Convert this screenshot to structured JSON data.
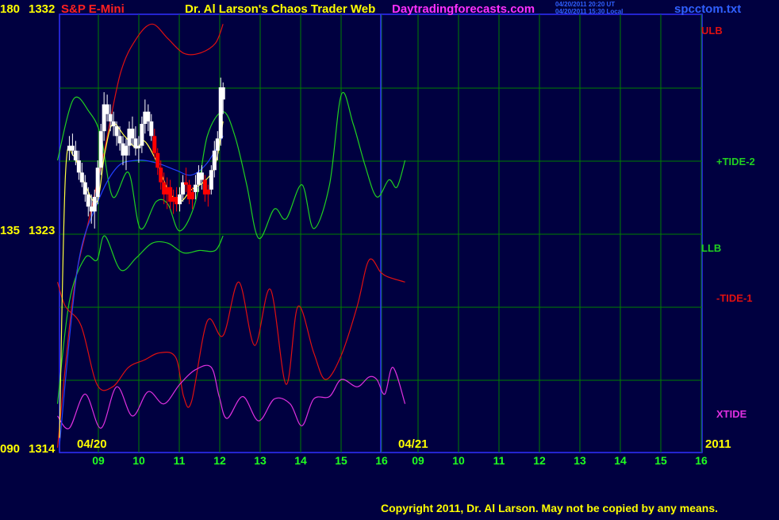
{
  "header": {
    "left_axis_top": "180",
    "right_axis_top": "1332",
    "symbol": "S&P E-Mini",
    "title": "Dr. Al Larson's Chaos Trader Web",
    "site": "Daytradingforecasts.com",
    "timestamp_ut": "04/20/2011 20:20 UT",
    "timestamp_local": "04/20/2011 15:30 Local",
    "filename": "spcctom.txt"
  },
  "footer": {
    "copyright": "Copyright 2011, Dr. Al Larson. May not be copied by any means."
  },
  "colors": {
    "background": "#000040",
    "grid": "#008000",
    "frame": "#3030ff",
    "price_up": "#ffffff",
    "price_down": "#ff0000",
    "price_wick": "#ffffc0",
    "ulb": "#e01010",
    "tide2": "#20d020",
    "llb": "#20d020",
    "tide1": "#e01010",
    "xtide": "#e030e0",
    "ma_blue": "#2040ff",
    "ma_yellow": "#ffff40",
    "axis_text": "#ffff00",
    "hour_text": "#20ff20",
    "site_text": "#ff30ff",
    "header_red": "#ff2020"
  },
  "chart_data": {
    "type": "line",
    "x_hours": [
      "09",
      "10",
      "11",
      "12",
      "13",
      "14",
      "15",
      "16",
      "09",
      "10",
      "11",
      "12",
      "13",
      "14",
      "15",
      "16"
    ],
    "date_labels": [
      "04/20",
      "04/21",
      "2011"
    ],
    "y_left_ticks": [
      "180",
      "135",
      "090"
    ],
    "y_right_ticks": [
      "1332",
      "1323",
      "1314"
    ],
    "ylim": [
      1314,
      1332
    ],
    "grid": true,
    "series_names": [
      "ULB",
      "+TIDE-2",
      "LLB",
      "-TIDE-1",
      "XTIDE"
    ],
    "bars": [
      {
        "x": 8.1,
        "o": 1326.4,
        "h": 1327.0,
        "l": 1326.0,
        "c": 1326.6
      },
      {
        "x": 8.18,
        "o": 1326.6,
        "h": 1327.1,
        "l": 1326.2,
        "c": 1326.4
      },
      {
        "x": 8.26,
        "o": 1326.4,
        "h": 1326.8,
        "l": 1325.8,
        "c": 1326.0
      },
      {
        "x": 8.34,
        "o": 1326.0,
        "h": 1326.4,
        "l": 1325.2,
        "c": 1325.5
      },
      {
        "x": 8.42,
        "o": 1325.5,
        "h": 1325.9,
        "l": 1324.9,
        "c": 1325.1
      },
      {
        "x": 8.5,
        "o": 1325.1,
        "h": 1325.4,
        "l": 1324.3,
        "c": 1324.6
      },
      {
        "x": 8.58,
        "o": 1324.6,
        "h": 1324.9,
        "l": 1323.7,
        "c": 1324.1
      },
      {
        "x": 8.66,
        "o": 1324.1,
        "h": 1324.6,
        "l": 1323.4,
        "c": 1323.9
      },
      {
        "x": 8.74,
        "o": 1323.9,
        "h": 1324.8,
        "l": 1323.2,
        "c": 1324.5
      },
      {
        "x": 8.82,
        "o": 1324.5,
        "h": 1326.0,
        "l": 1324.2,
        "c": 1325.7
      },
      {
        "x": 8.9,
        "o": 1325.7,
        "h": 1327.5,
        "l": 1325.4,
        "c": 1327.2
      },
      {
        "x": 8.98,
        "o": 1327.2,
        "h": 1328.8,
        "l": 1326.8,
        "c": 1328.3
      },
      {
        "x": 9.06,
        "o": 1328.3,
        "h": 1328.7,
        "l": 1327.6,
        "c": 1327.9
      },
      {
        "x": 9.14,
        "o": 1327.9,
        "h": 1328.3,
        "l": 1327.2,
        "c": 1327.6
      },
      {
        "x": 9.22,
        "o": 1327.6,
        "h": 1328.0,
        "l": 1327.0,
        "c": 1327.4
      },
      {
        "x": 9.3,
        "o": 1327.4,
        "h": 1327.6,
        "l": 1326.6,
        "c": 1327.0
      },
      {
        "x": 9.38,
        "o": 1327.0,
        "h": 1327.4,
        "l": 1326.4,
        "c": 1326.7
      },
      {
        "x": 9.46,
        "o": 1326.7,
        "h": 1327.0,
        "l": 1325.8,
        "c": 1326.2
      },
      {
        "x": 9.54,
        "o": 1326.2,
        "h": 1326.9,
        "l": 1325.6,
        "c": 1326.6
      },
      {
        "x": 9.62,
        "o": 1326.6,
        "h": 1327.6,
        "l": 1326.2,
        "c": 1327.3
      },
      {
        "x": 9.7,
        "o": 1327.3,
        "h": 1327.8,
        "l": 1326.6,
        "c": 1326.9
      },
      {
        "x": 9.78,
        "o": 1326.9,
        "h": 1327.4,
        "l": 1326.2,
        "c": 1326.5
      },
      {
        "x": 9.86,
        "o": 1326.5,
        "h": 1327.0,
        "l": 1325.9,
        "c": 1326.6
      },
      {
        "x": 9.94,
        "o": 1326.6,
        "h": 1327.8,
        "l": 1326.3,
        "c": 1327.5
      },
      {
        "x": 10.02,
        "o": 1327.5,
        "h": 1328.5,
        "l": 1327.1,
        "c": 1328.0
      },
      {
        "x": 10.1,
        "o": 1328.0,
        "h": 1328.3,
        "l": 1327.2,
        "c": 1327.6
      },
      {
        "x": 10.18,
        "o": 1327.6,
        "h": 1327.9,
        "l": 1326.8,
        "c": 1327.0
      },
      {
        "x": 10.26,
        "o": 1327.0,
        "h": 1327.3,
        "l": 1326.1,
        "c": 1326.3,
        "down": true
      },
      {
        "x": 10.34,
        "o": 1326.3,
        "h": 1326.5,
        "l": 1325.4,
        "c": 1325.7,
        "down": true
      },
      {
        "x": 10.42,
        "o": 1325.7,
        "h": 1326.0,
        "l": 1324.8,
        "c": 1325.1,
        "down": true
      },
      {
        "x": 10.5,
        "o": 1325.1,
        "h": 1325.5,
        "l": 1324.2,
        "c": 1324.6,
        "down": true
      },
      {
        "x": 10.58,
        "o": 1324.6,
        "h": 1325.3,
        "l": 1324.0,
        "c": 1324.9,
        "down": true
      },
      {
        "x": 10.66,
        "o": 1324.9,
        "h": 1325.2,
        "l": 1324.0,
        "c": 1324.3,
        "down": true
      },
      {
        "x": 10.74,
        "o": 1324.3,
        "h": 1324.8,
        "l": 1323.8,
        "c": 1324.5,
        "down": true
      },
      {
        "x": 10.82,
        "o": 1324.5,
        "h": 1324.9,
        "l": 1323.9,
        "c": 1324.2,
        "down": true
      },
      {
        "x": 10.9,
        "o": 1324.2,
        "h": 1324.9,
        "l": 1323.9,
        "c": 1324.6
      },
      {
        "x": 10.98,
        "o": 1324.6,
        "h": 1325.4,
        "l": 1324.3,
        "c": 1325.1
      },
      {
        "x": 11.06,
        "o": 1325.1,
        "h": 1325.7,
        "l": 1324.7,
        "c": 1325.0,
        "down": true
      },
      {
        "x": 11.14,
        "o": 1325.0,
        "h": 1325.2,
        "l": 1324.2,
        "c": 1324.4,
        "down": true
      },
      {
        "x": 11.22,
        "o": 1324.4,
        "h": 1324.9,
        "l": 1324.0,
        "c": 1324.7,
        "down": true
      },
      {
        "x": 11.3,
        "o": 1324.7,
        "h": 1325.4,
        "l": 1324.4,
        "c": 1325.0
      },
      {
        "x": 11.38,
        "o": 1325.0,
        "h": 1325.8,
        "l": 1324.7,
        "c": 1325.5
      },
      {
        "x": 11.46,
        "o": 1325.5,
        "h": 1325.8,
        "l": 1324.8,
        "c": 1325.2
      },
      {
        "x": 11.54,
        "o": 1325.2,
        "h": 1325.4,
        "l": 1324.3,
        "c": 1324.6,
        "down": true
      },
      {
        "x": 11.62,
        "o": 1324.6,
        "h": 1325.0,
        "l": 1324.1,
        "c": 1324.8,
        "down": true
      },
      {
        "x": 11.7,
        "o": 1324.8,
        "h": 1325.8,
        "l": 1324.6,
        "c": 1325.6
      },
      {
        "x": 11.78,
        "o": 1325.6,
        "h": 1326.8,
        "l": 1325.3,
        "c": 1326.4
      },
      {
        "x": 11.86,
        "o": 1326.4,
        "h": 1327.2,
        "l": 1326.0,
        "c": 1326.9
      },
      {
        "x": 11.94,
        "o": 1326.9,
        "h": 1329.4,
        "l": 1326.6,
        "c": 1329.0
      },
      {
        "x": 12.0,
        "o": 1329.0,
        "h": 1329.2,
        "l": 1327.9,
        "c": 1328.5
      }
    ],
    "curves": {
      "ulb": [
        [
          7.8,
          1314.2
        ],
        [
          8.2,
          1320.5
        ],
        [
          8.6,
          1323.6
        ],
        [
          9.0,
          1326.5
        ],
        [
          9.4,
          1329.6
        ],
        [
          9.8,
          1331.0
        ],
        [
          10.2,
          1331.6
        ],
        [
          10.6,
          1331.0
        ],
        [
          11.0,
          1330.4
        ],
        [
          11.4,
          1330.4
        ],
        [
          11.8,
          1330.8
        ],
        [
          12.0,
          1331.6
        ]
      ],
      "tide2": [
        [
          7.8,
          1326.0
        ],
        [
          8.2,
          1328.5
        ],
        [
          8.6,
          1328.0
        ],
        [
          8.9,
          1327.0
        ],
        [
          9.2,
          1324.5
        ],
        [
          9.6,
          1325.5
        ],
        [
          9.9,
          1323.2
        ],
        [
          10.3,
          1324.3
        ],
        [
          10.6,
          1324.2
        ],
        [
          10.9,
          1323.1
        ],
        [
          11.3,
          1324.3
        ],
        [
          11.6,
          1327.0
        ],
        [
          12.0,
          1328.0
        ],
        [
          12.3,
          1327.0
        ],
        [
          12.6,
          1325.0
        ],
        [
          12.9,
          1322.8
        ],
        [
          13.3,
          1324.0
        ],
        [
          13.6,
          1323.6
        ],
        [
          14.0,
          1325.0
        ],
        [
          14.3,
          1323.2
        ],
        [
          14.7,
          1325.0
        ],
        [
          15.0,
          1328.7
        ],
        [
          15.3,
          1327.5
        ],
        [
          15.6,
          1325.8
        ],
        [
          15.9,
          1324.5
        ],
        [
          16.2,
          1325.2
        ],
        [
          16.4,
          1324.9
        ],
        [
          16.6,
          1326.0
        ]
      ],
      "llb": [
        [
          7.8,
          1316.0
        ],
        [
          8.1,
          1320.2
        ],
        [
          8.5,
          1322.0
        ],
        [
          8.8,
          1321.9
        ],
        [
          9.0,
          1322.9
        ],
        [
          9.4,
          1321.5
        ],
        [
          9.8,
          1322.0
        ],
        [
          10.2,
          1322.6
        ],
        [
          10.6,
          1322.6
        ],
        [
          11.0,
          1322.2
        ],
        [
          11.4,
          1322.3
        ],
        [
          11.8,
          1322.3
        ],
        [
          12.0,
          1322.9
        ]
      ],
      "tide1": [
        [
          7.8,
          1321.0
        ],
        [
          8.0,
          1320.0
        ],
        [
          8.4,
          1319.2
        ],
        [
          8.8,
          1316.8
        ],
        [
          9.2,
          1316.7
        ],
        [
          9.6,
          1317.5
        ],
        [
          10.0,
          1317.8
        ],
        [
          10.4,
          1318.1
        ],
        [
          10.8,
          1317.9
        ],
        [
          11.0,
          1316.3
        ],
        [
          11.2,
          1316.1
        ],
        [
          11.6,
          1319.4
        ],
        [
          12.0,
          1318.8
        ],
        [
          12.4,
          1321.0
        ],
        [
          12.8,
          1318.4
        ],
        [
          13.2,
          1320.7
        ],
        [
          13.6,
          1316.8
        ],
        [
          13.9,
          1320.0
        ],
        [
          14.3,
          1318.1
        ],
        [
          14.6,
          1317.0
        ],
        [
          15.0,
          1318.0
        ],
        [
          15.4,
          1320.0
        ],
        [
          15.7,
          1321.9
        ],
        [
          16.0,
          1321.4
        ],
        [
          16.2,
          1321.2
        ],
        [
          16.6,
          1321.0
        ]
      ],
      "xtide": [
        [
          7.8,
          1315.5
        ],
        [
          8.1,
          1315.0
        ],
        [
          8.5,
          1316.4
        ],
        [
          8.9,
          1315.0
        ],
        [
          9.3,
          1316.7
        ],
        [
          9.7,
          1315.5
        ],
        [
          10.1,
          1316.5
        ],
        [
          10.5,
          1316.0
        ],
        [
          10.9,
          1316.8
        ],
        [
          11.3,
          1317.4
        ],
        [
          11.7,
          1317.5
        ],
        [
          11.9,
          1316.3
        ],
        [
          12.1,
          1315.4
        ],
        [
          12.5,
          1316.3
        ],
        [
          12.9,
          1315.3
        ],
        [
          13.3,
          1316.2
        ],
        [
          13.7,
          1316.0
        ],
        [
          14.0,
          1315.1
        ],
        [
          14.3,
          1316.2
        ],
        [
          14.7,
          1316.3
        ],
        [
          15.0,
          1317.0
        ],
        [
          15.4,
          1316.7
        ],
        [
          15.7,
          1317.1
        ],
        [
          15.9,
          1317.0
        ],
        [
          16.1,
          1316.4
        ],
        [
          16.3,
          1317.5
        ],
        [
          16.6,
          1316.0
        ]
      ],
      "ma_blue": [
        [
          7.85,
          1314.3
        ],
        [
          8.3,
          1321.5
        ],
        [
          8.8,
          1324.2
        ],
        [
          9.3,
          1325.7
        ],
        [
          9.8,
          1326.0
        ],
        [
          10.3,
          1325.9
        ],
        [
          10.8,
          1325.6
        ],
        [
          11.2,
          1325.4
        ],
        [
          11.6,
          1325.9
        ],
        [
          12.0,
          1327.0
        ]
      ],
      "ma_yellow": [
        [
          7.85,
          1314.6
        ],
        [
          8.0,
          1325.4
        ],
        [
          8.2,
          1326.2
        ],
        [
          8.5,
          1325.0
        ],
        [
          8.8,
          1324.3
        ],
        [
          9.0,
          1326.3
        ],
        [
          9.2,
          1327.5
        ],
        [
          9.5,
          1327.0
        ],
        [
          9.8,
          1326.5
        ],
        [
          10.0,
          1326.8
        ],
        [
          10.3,
          1326.0
        ],
        [
          10.6,
          1324.8
        ],
        [
          10.9,
          1324.3
        ],
        [
          11.2,
          1324.8
        ],
        [
          11.5,
          1325.1
        ],
        [
          11.8,
          1325.8
        ],
        [
          12.0,
          1327.6
        ]
      ]
    }
  }
}
